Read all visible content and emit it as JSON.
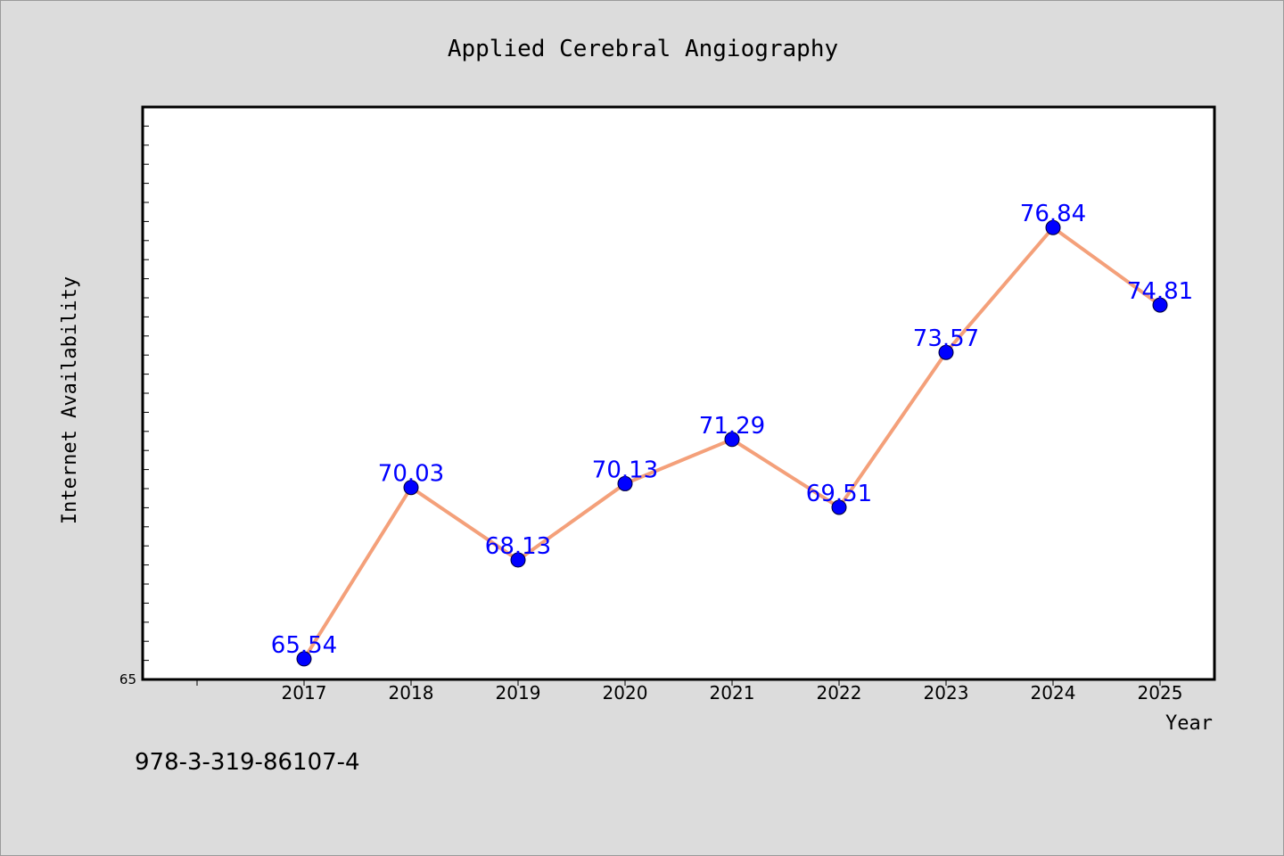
{
  "isbn": "978-3-319-86107-4",
  "chart_data": {
    "type": "line",
    "title": "Applied Cerebral Angiography",
    "xlabel": "Year",
    "ylabel": "Internet Availability",
    "categories": [
      "2017",
      "2018",
      "2019",
      "2020",
      "2021",
      "2022",
      "2023",
      "2024",
      "2025"
    ],
    "values": [
      65.54,
      70.03,
      68.13,
      70.13,
      71.29,
      69.51,
      73.57,
      76.84,
      74.81
    ],
    "data_labels": [
      "65.54",
      "70.03",
      "68.13",
      "70.13",
      "71.29",
      "69.51",
      "73.57",
      "76.84",
      "74.81"
    ],
    "ylim": [
      65,
      80
    ],
    "y_tick_labels": [
      "65"
    ],
    "line_color": "#f4a07a",
    "marker_color": "#0000ff",
    "label_color": "#0000ff",
    "grid": false,
    "legend": "none"
  }
}
